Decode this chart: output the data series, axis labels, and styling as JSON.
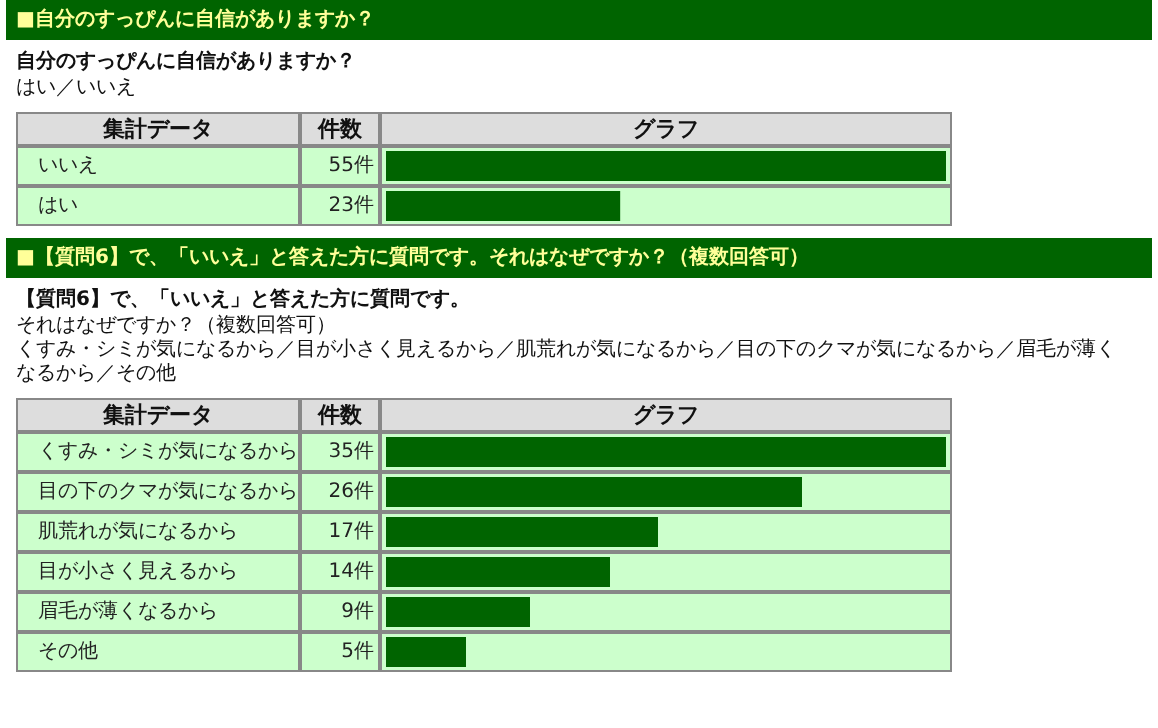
{
  "chart_data": [
    {
      "type": "bar",
      "orientation": "horizontal",
      "title": "■自分のすっぴんに自信がありますか？",
      "subtitle": "自分のすっぴんに自信がありますか？",
      "annotations": [
        "はい／いいえ"
      ],
      "ylabel": "集計データ",
      "y2label": "件数",
      "xlabel": "グラフ",
      "categories": [
        "いいえ",
        "はい"
      ],
      "values": [
        55,
        23
      ],
      "value_labels": [
        "55件",
        "23件"
      ],
      "color": "#006400"
    },
    {
      "type": "bar",
      "orientation": "horizontal",
      "title": "■【質問6】で、「いいえ」と答えた方に質問です。それはなぜですか？（複数回答可）",
      "subtitle": "【質問6】で、「いいえ」と答えた方に質問です。",
      "annotations": [
        "それはなぜですか？（複数回答可）",
        "くすみ・シミが気になるから／目が小さく見えるから／肌荒れが気になるから／目の下のクマが気になるから／眉毛が薄くなるから／その他"
      ],
      "ylabel": "集計データ",
      "y2label": "件数",
      "xlabel": "グラフ",
      "categories": [
        "くすみ・シミが気になるから",
        "目の下のクマが気になるから",
        "肌荒れが気になるから",
        "目が小さく見えるから",
        "眉毛が薄くなるから",
        "その他"
      ],
      "values": [
        35,
        26,
        17,
        14,
        9,
        5
      ],
      "value_labels": [
        "35件",
        "26件",
        "17件",
        "14件",
        "9件",
        "5件"
      ],
      "color": "#006400"
    }
  ]
}
